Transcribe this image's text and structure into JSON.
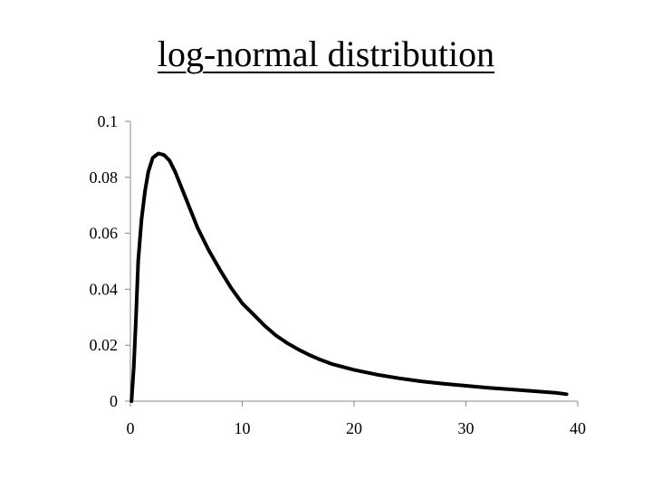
{
  "slide": {
    "title": "log-normal distribution"
  },
  "chart_data": {
    "type": "line",
    "title": "log-normal distribution",
    "xlabel": "",
    "ylabel": "",
    "xlim": [
      0,
      40
    ],
    "ylim": [
      0,
      0.1
    ],
    "x_ticks": [
      0,
      10,
      20,
      30,
      40
    ],
    "y_ticks": [
      0,
      0.02,
      0.04,
      0.06,
      0.08,
      0.1
    ],
    "y_tick_labels": [
      "0",
      "0.02",
      "0.04",
      "0.06",
      "0.08",
      "0.1"
    ],
    "x_tick_labels": [
      "0",
      "10",
      "20",
      "30",
      "40"
    ],
    "grid": false,
    "legend": "none",
    "series": [
      {
        "color": "#000000",
        "x": [
          0.1,
          0.3,
          0.5,
          0.7,
          1.0,
          1.3,
          1.6,
          2.0,
          2.5,
          3.0,
          3.5,
          4.0,
          4.5,
          5.0,
          6.0,
          7.0,
          8.0,
          9.0,
          10.0,
          11.0,
          12.0,
          13.0,
          14.0,
          15.0,
          16.0,
          17.0,
          18.0,
          20.0,
          22.0,
          24.0,
          26.0,
          28.0,
          30.0,
          32.0,
          34.0,
          36.0,
          38.0,
          39.0
        ],
        "y": [
          0.0,
          0.012,
          0.03,
          0.05,
          0.065,
          0.075,
          0.082,
          0.087,
          0.0885,
          0.088,
          0.086,
          0.082,
          0.077,
          0.072,
          0.062,
          0.054,
          0.047,
          0.0405,
          0.035,
          0.031,
          0.027,
          0.0235,
          0.0208,
          0.0185,
          0.0165,
          0.0148,
          0.0133,
          0.0112,
          0.0095,
          0.0082,
          0.0071,
          0.0062,
          0.0055,
          0.0048,
          0.0042,
          0.0036,
          0.003,
          0.0025
        ]
      }
    ]
  }
}
